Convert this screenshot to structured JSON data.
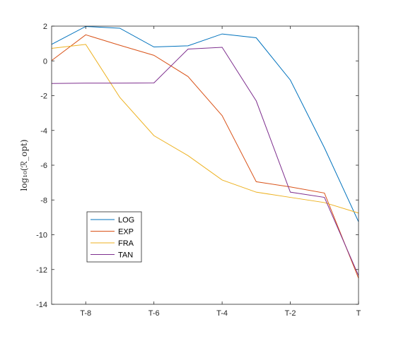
{
  "chart_data": {
    "type": "line",
    "ylabel": "log₁₀(ℛ_opt)",
    "x_ticks": [
      -8,
      -6,
      -4,
      -2,
      0
    ],
    "x_tick_labels": [
      "T-8",
      "T-6",
      "T-4",
      "T-2",
      "T"
    ],
    "xlim": [
      -9,
      0
    ],
    "ylim": [
      -14,
      2
    ],
    "y_ticks": [
      -14,
      -12,
      -10,
      -8,
      -6,
      -4,
      -2,
      0,
      2
    ],
    "y_tick_labels": [
      "-14",
      "-12",
      "-10",
      "-8",
      "-6",
      "-4",
      "-2",
      "0",
      "2"
    ],
    "grid": false,
    "legend": "inside lower-left",
    "x": [
      -9,
      -8,
      -7,
      -6,
      -5,
      -4,
      -3,
      -2,
      -1,
      0
    ],
    "series": [
      {
        "name": "LOG",
        "color": "#0072BD",
        "values": [
          0.95,
          1.98,
          1.88,
          0.8,
          0.87,
          1.55,
          1.33,
          -1.1,
          -5.0,
          -9.25
        ]
      },
      {
        "name": "EXP",
        "color": "#D95319",
        "values": [
          0.02,
          1.5,
          0.9,
          0.32,
          -0.9,
          -3.15,
          -6.95,
          -7.25,
          -7.6,
          -12.5
        ]
      },
      {
        "name": "FRA",
        "color": "#EDB120",
        "values": [
          0.72,
          0.95,
          -2.1,
          -4.3,
          -5.45,
          -6.85,
          -7.55,
          -7.85,
          -8.15,
          -8.75
        ]
      },
      {
        "name": "TAN",
        "color": "#7E2F8E",
        "values": [
          -1.3,
          -1.28,
          -1.28,
          -1.27,
          0.68,
          0.78,
          -2.3,
          -7.55,
          -7.85,
          -12.35
        ]
      }
    ]
  }
}
